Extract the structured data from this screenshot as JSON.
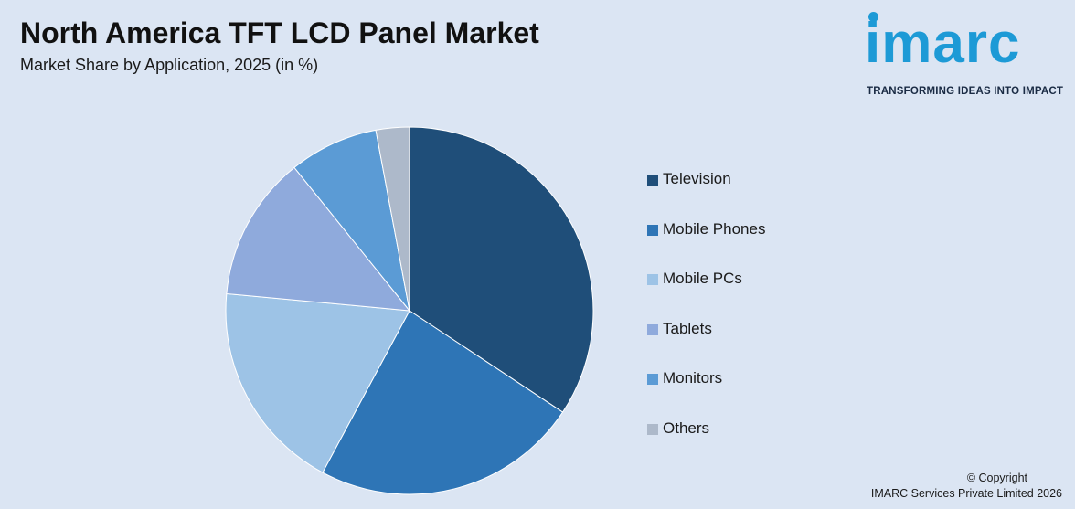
{
  "header": {
    "title": "North America TFT LCD Panel Market",
    "subtitle": "Market Share by Application, 2025 (in %)"
  },
  "logo": {
    "word": "imarc",
    "tagline": "TRANSFORMING IDEAS INTO IMPACT",
    "color": "#1d9ad6"
  },
  "chart_data": {
    "type": "pie",
    "title": "North America TFT LCD Panel Market",
    "subtitle": "Market Share by Application, 2025 (in %)",
    "legend_position": "right",
    "start_angle_deg": 0,
    "direction": "clockwise",
    "slices": [
      {
        "label": "Television",
        "value": 35,
        "color": "#1f4e79"
      },
      {
        "label": "Mobile Phones",
        "value": 24,
        "color": "#2e75b6"
      },
      {
        "label": "Mobile PCs",
        "value": 19,
        "color": "#9dc3e6"
      },
      {
        "label": "Tablets",
        "value": 13,
        "color": "#8faadc"
      },
      {
        "label": "Monitors",
        "value": 8,
        "color": "#5b9bd5"
      },
      {
        "label": "Others",
        "value": 3,
        "color": "#adb9ca"
      }
    ]
  },
  "footer": {
    "copyright_line1": "© Copyright",
    "copyright_line2": "IMARC Services Private Limited 2026"
  }
}
